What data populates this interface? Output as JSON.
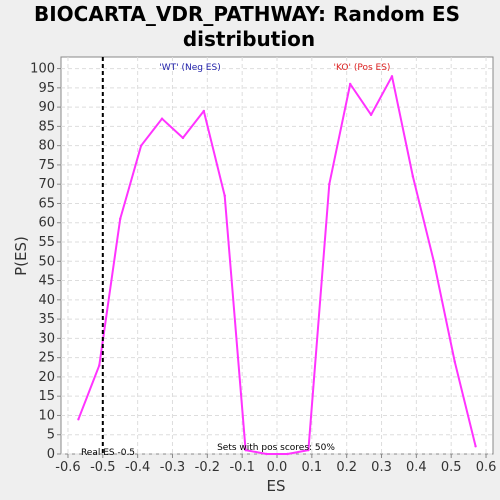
{
  "chart_data": {
    "type": "line",
    "title_line1": "BIOCARTA_VDR_PATHWAY: Random ES",
    "title_line2": "distribution",
    "xlabel": "ES",
    "ylabel": "P(ES)",
    "xlim": [
      -0.62,
      0.62
    ],
    "ylim": [
      0,
      103
    ],
    "x_ticks": [
      "-0.6",
      "-0.5",
      "-0.4",
      "-0.3",
      "-0.2",
      "-0.1",
      "0.0",
      "0.1",
      "0.2",
      "0.3",
      "0.4",
      "0.5",
      "0.6"
    ],
    "y_ticks": [
      "0",
      "5",
      "10",
      "15",
      "20",
      "25",
      "30",
      "35",
      "40",
      "45",
      "50",
      "55",
      "60",
      "65",
      "70",
      "75",
      "80",
      "85",
      "90",
      "95",
      "100"
    ],
    "grid": true,
    "series": [
      {
        "color": "#ff33ff",
        "x": [
          -0.57,
          -0.51,
          -0.45,
          -0.39,
          -0.33,
          -0.27,
          -0.21,
          -0.15,
          -0.09,
          -0.03,
          0.03,
          0.09,
          0.15,
          0.21,
          0.27,
          0.33,
          0.39,
          0.45,
          0.51,
          0.57
        ],
        "y": [
          9,
          23,
          61,
          80,
          87,
          82,
          89,
          67,
          1,
          0,
          0,
          1,
          70,
          96,
          88,
          98,
          72,
          50,
          24,
          2
        ]
      }
    ],
    "real_es": {
      "x": -0.5,
      "label": "Real ES -0.5",
      "color": "#000000"
    },
    "annotations": {
      "neg": {
        "text": "'WT' (Neg ES)",
        "color": "#2222aa"
      },
      "pos": {
        "text": "'KO' (Pos ES)",
        "color": "#dd2222"
      },
      "sets": {
        "text": "Sets with pos scores: 50%",
        "color": "#000000"
      }
    }
  }
}
